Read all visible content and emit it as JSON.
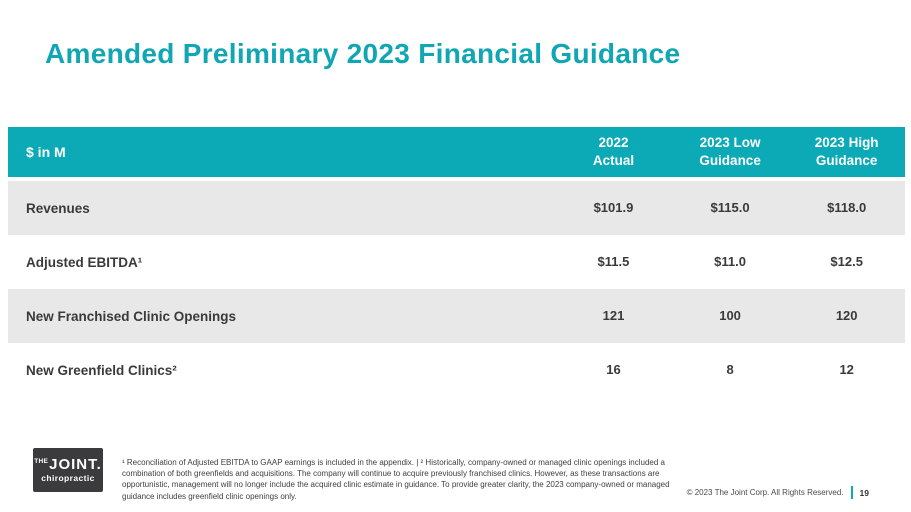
{
  "slide": {
    "title": "Amended Preliminary 2023 Financial Guidance"
  },
  "table": {
    "header": {
      "label": "$ in M",
      "columns": [
        {
          "line1": "2022",
          "line2": "Actual"
        },
        {
          "line1": "2023 Low",
          "line2": "Guidance"
        },
        {
          "line1": "2023 High",
          "line2": "Guidance"
        }
      ]
    },
    "rows": [
      {
        "label": "Revenues",
        "values": [
          "$101.9",
          "$115.0",
          "$118.0"
        ]
      },
      {
        "label": "Adjusted EBITDA¹",
        "values": [
          "$11.5",
          "$11.0",
          "$12.5"
        ]
      },
      {
        "label": "New Franchised Clinic Openings",
        "values": [
          "121",
          "100",
          "120"
        ]
      },
      {
        "label": "New Greenfield Clinics²",
        "values": [
          "16",
          "8",
          "12"
        ]
      }
    ]
  },
  "footer": {
    "logo": {
      "the": "THE",
      "joint": "JOINT.",
      "tagline": "chiropractic"
    },
    "footnote": "¹ Reconciliation of Adjusted EBITDA to GAAP earnings is included in the appendix. | ² Historically, company-owned or managed clinic openings included a combination of both greenfields and acquisitions. The company will continue to acquire previously franchised clinics. However, as these transactions are opportunistic, management will no longer include the acquired clinic estimate in guidance. To provide greater clarity, the 2023 company-owned or managed guidance includes greenfield clinic openings only.",
    "copyright": "© 2023 The Joint Corp. All Rights Reserved.",
    "page_number": "19"
  },
  "colors": {
    "accent_teal": "#0caab6",
    "title_teal": "#10a6b4",
    "row_gray": "#e8e8e8",
    "logo_bg": "#3b3a3c"
  }
}
